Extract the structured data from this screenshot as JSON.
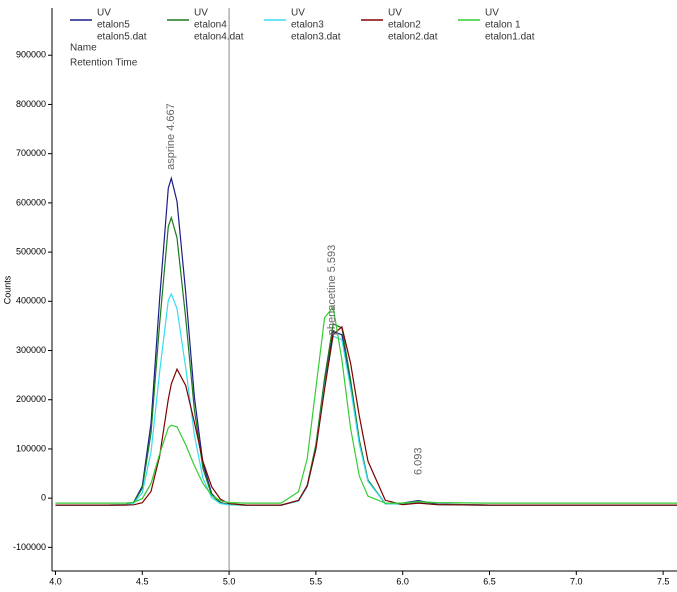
{
  "chart_data": {
    "type": "line",
    "y_label": "Counts",
    "header_labels": [
      "Name",
      "Retention Time"
    ],
    "x": [
      4.0,
      4.3,
      4.4,
      4.45,
      4.5,
      4.55,
      4.6,
      4.65,
      4.667,
      4.7,
      4.75,
      4.8,
      4.85,
      4.9,
      4.95,
      5.0,
      5.1,
      5.2,
      5.3,
      5.4,
      5.45,
      5.5,
      5.55,
      5.6,
      5.65,
      5.7,
      5.75,
      5.8,
      5.9,
      6.0,
      6.09,
      6.2,
      6.5,
      7.0,
      7.58
    ],
    "series": [
      {
        "detector": "UV",
        "name": "etalon5",
        "file": "etalon5.dat",
        "color": "#1c1c8c",
        "values": [
          -14000,
          -14000,
          -13500,
          -8700,
          24500,
          152000,
          404000,
          630000,
          650000,
          603000,
          418000,
          205000,
          70000,
          9000,
          -9000,
          -13000,
          -14000,
          -14000,
          -14000,
          -5600,
          24000,
          104000,
          233000,
          339000,
          332000,
          230000,
          113000,
          35000,
          -11000,
          -10000,
          -5000,
          -12000,
          -14000,
          -14000,
          -14000
        ]
      },
      {
        "detector": "UV",
        "name": "etalon4",
        "file": "etalon4.dat",
        "color": "#1a7a1a",
        "values": [
          -14000,
          -14000,
          -13600,
          -9300,
          20000,
          132000,
          354000,
          552000,
          570000,
          529000,
          366000,
          179000,
          60000,
          6000,
          -10000,
          -13400,
          -14000,
          -14000,
          -14000,
          -5300,
          26000,
          109000,
          244000,
          354000,
          346000,
          240000,
          119000,
          37000,
          -11000,
          -12000,
          -8000,
          -13000,
          -14000,
          -14000,
          -14000
        ]
      },
      {
        "detector": "UV",
        "name": "etalon3",
        "file": "etalon3.dat",
        "color": "#38dcf0",
        "values": [
          -14000,
          -14000,
          -13700,
          -10600,
          11000,
          93000,
          256000,
          402000,
          415000,
          385000,
          265000,
          128000,
          40000,
          1000,
          -11000,
          -13600,
          -14000,
          -14000,
          -14000,
          -5900,
          23000,
          101000,
          227000,
          329000,
          322000,
          223000,
          110000,
          34000,
          -11000,
          -12000,
          -9000,
          -13000,
          -14000,
          -14000,
          -14000
        ]
      },
      {
        "detector": "UV",
        "name": "etalon2",
        "file": "etalon2.dat",
        "color": "#800000",
        "values": [
          -14000,
          -14000,
          -14000,
          -13400,
          -9300,
          13600,
          85000,
          201000,
          232000,
          262000,
          229000,
          154000,
          74000,
          23000,
          -2000,
          -11000,
          -14000,
          -14000,
          -14000,
          -4400,
          25000,
          100000,
          222000,
          333000,
          348000,
          274000,
          167000,
          75000,
          -4400,
          -13000,
          -10000,
          -13000,
          -14000,
          -14000,
          -14000
        ]
      },
      {
        "detector": "UV",
        "name": "etalon 1",
        "file": "etalon1.dat",
        "color": "#33cc33",
        "values": [
          -10000,
          -10000,
          -10000,
          -8700,
          -800,
          29500,
          89500,
          143000,
          148000,
          145000,
          108500,
          66000,
          29500,
          5800,
          -5300,
          -9000,
          -10000,
          -10000,
          -10000,
          13000,
          80000,
          224000,
          367000,
          388000,
          281000,
          142000,
          45000,
          4000,
          -10000,
          -10000,
          -7000,
          -9000,
          -10000,
          -10000,
          -10000
        ]
      }
    ],
    "annotations": [
      {
        "label": "asprine  4.667",
        "x": 4.667,
        "y": 667000
      },
      {
        "label": "phenacetine  5.593",
        "x": 5.593,
        "y": 331000
      },
      {
        "label": "6.093",
        "x": 6.093,
        "y": 47000
      }
    ],
    "vline": 5.0,
    "xlim": [
      3.98,
      7.58
    ],
    "ylim": [
      -148000,
      996000
    ],
    "xticks": [
      {
        "value": 4,
        "label": "4.0"
      },
      4.5,
      {
        "value": 5,
        "label": "5.0"
      },
      5.5,
      {
        "value": 6,
        "label": "6.0"
      },
      6.5,
      {
        "value": 7,
        "label": "7.0"
      },
      7.5
    ],
    "yticks": [
      -100000,
      0,
      100000,
      200000,
      300000,
      400000,
      500000,
      600000,
      700000,
      800000,
      900000
    ]
  }
}
